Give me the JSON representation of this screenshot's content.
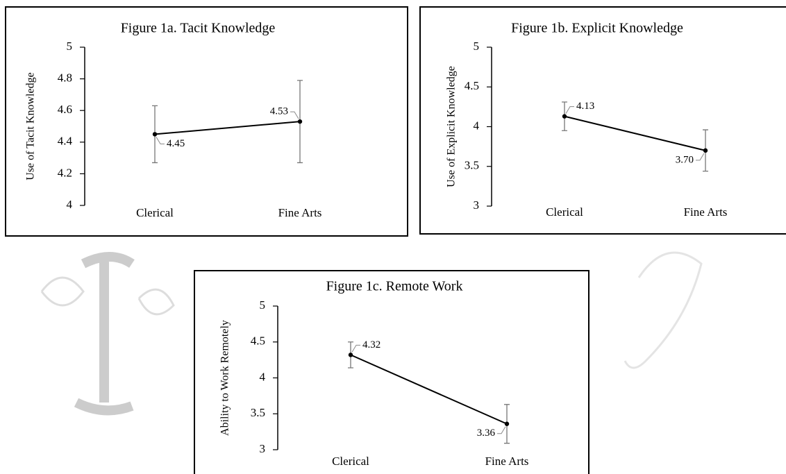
{
  "chart_data": [
    {
      "type": "line",
      "title": "Figure 1a. Tacit Knowledge",
      "y_label": "Use of Tacit Knowledge",
      "categories": [
        "Clerical",
        "Fine Arts"
      ],
      "series": [
        {
          "color": "#000000",
          "values": [
            4.45,
            4.53
          ],
          "value_labels": [
            "4.45",
            "4.53"
          ],
          "errors": [
            0.18,
            0.26
          ]
        }
      ],
      "ylim": [
        4,
        5
      ],
      "yticks": [
        4,
        4.2,
        4.4,
        4.6,
        4.8,
        5
      ]
    },
    {
      "type": "line",
      "title": "Figure 1b. Explicit Knowledge",
      "y_label": "Use of Explicit Knowledge",
      "categories": [
        "Clerical",
        "Fine Arts"
      ],
      "series": [
        {
          "color": "#000000",
          "values": [
            4.13,
            3.7
          ],
          "value_labels": [
            "4.13",
            "3.70"
          ],
          "errors": [
            0.18,
            0.26
          ]
        }
      ],
      "ylim": [
        3,
        5
      ],
      "yticks": [
        3,
        3.5,
        4,
        4.5,
        5
      ]
    },
    {
      "type": "line",
      "title": "Figure 1c. Remote Work",
      "y_label": "Ability to Work Remotely",
      "categories": [
        "Clerical",
        "Fine Arts"
      ],
      "series": [
        {
          "color": "#000000",
          "values": [
            4.32,
            3.36
          ],
          "value_labels": [
            "4.32",
            "3.36"
          ],
          "errors": [
            0.18,
            0.27
          ]
        }
      ],
      "ylim": [
        3,
        5
      ],
      "yticks": [
        3,
        3.5,
        4,
        4.5,
        5
      ]
    }
  ]
}
